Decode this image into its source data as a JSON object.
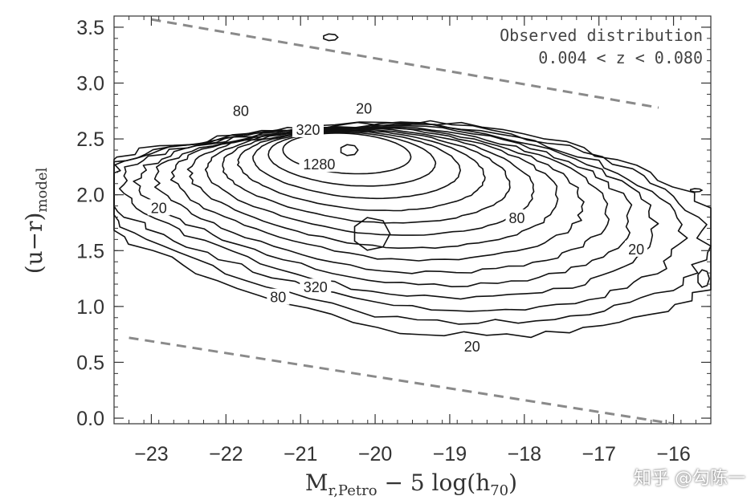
{
  "chart_data": {
    "type": "contour",
    "xlabel_main": "M",
    "xlabel_sub": "r,Petro",
    "xlabel_rest": " − 5 log(h",
    "xlabel_sub2": "70",
    "xlabel_close": ")",
    "ylabel_main": "(u−r)",
    "ylabel_sub": "model",
    "xlim": [
      -23.5,
      -15.5
    ],
    "ylim": [
      -0.05,
      3.6
    ],
    "x_reversed": false,
    "xticks": [
      -23,
      -22,
      -21,
      -20,
      -19,
      -18,
      -17,
      -16
    ],
    "xtick_labels": [
      "−23",
      "−22",
      "−21",
      "−20",
      "−19",
      "−18",
      "−17",
      "−16"
    ],
    "yticks": [
      0.0,
      0.5,
      1.0,
      1.5,
      2.0,
      2.5,
      3.0,
      3.5
    ],
    "ytick_labels": [
      "0.0",
      "0.5",
      "1.0",
      "1.5",
      "2.0",
      "2.5",
      "3.0",
      "3.5"
    ],
    "annotations": [
      "Observed distribution",
      "0.004 < z < 0.080"
    ],
    "contour_labels": [
      {
        "text": "20",
        "x": -20.15,
        "y": 2.77
      },
      {
        "text": "80",
        "x": -21.8,
        "y": 2.75
      },
      {
        "text": "320",
        "x": -20.9,
        "y": 2.58
      },
      {
        "text": "1280",
        "x": -20.75,
        "y": 2.27
      },
      {
        "text": "20",
        "x": -22.9,
        "y": 1.88
      },
      {
        "text": "80",
        "x": -18.1,
        "y": 1.79
      },
      {
        "text": "20",
        "x": -16.5,
        "y": 1.51
      },
      {
        "text": "320",
        "x": -20.8,
        "y": 1.17
      },
      {
        "text": "80",
        "x": -21.3,
        "y": 1.08
      },
      {
        "text": "20",
        "x": -18.7,
        "y": 0.64
      }
    ],
    "cutoff_lines": [
      {
        "x": [
          -23.0,
          -16.2
        ],
        "y": [
          3.57,
          2.78
        ]
      },
      {
        "x": [
          -23.3,
          -16.0
        ],
        "y": [
          0.72,
          -0.05
        ]
      }
    ],
    "levels": [
      20,
      40,
      80,
      160,
      320,
      640,
      1280
    ]
  },
  "watermark": "知乎 @勾陈一"
}
